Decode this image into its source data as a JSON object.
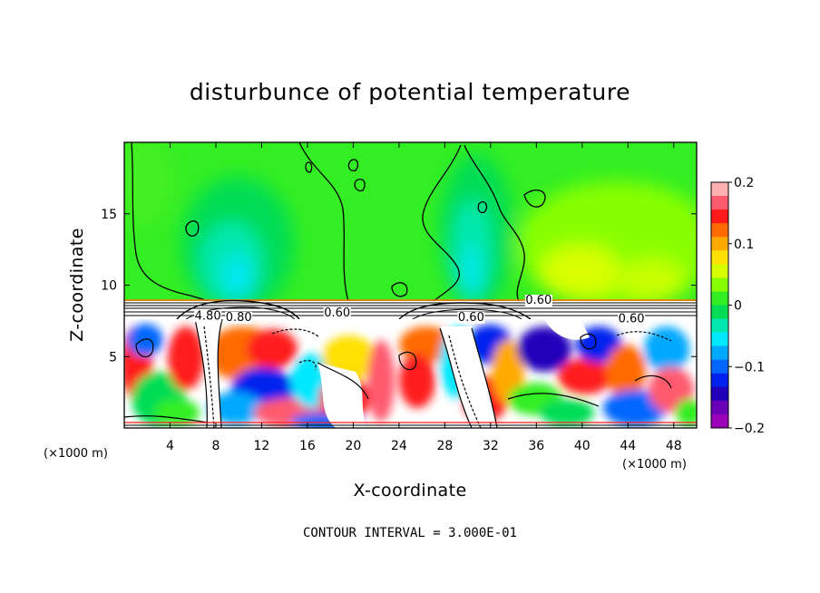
{
  "chart_data": {
    "type": "heatmap",
    "title": "disturbunce of potential temperature",
    "xlabel": "X-coordinate",
    "ylabel": "Z-coordinate",
    "x_unit": "(×1000 m)",
    "z_unit": "(×1000 m)",
    "xlim": [
      0,
      50
    ],
    "ylim": [
      0,
      20
    ],
    "x_ticks": [
      4,
      8,
      12,
      16,
      20,
      24,
      28,
      32,
      36,
      40,
      44,
      48
    ],
    "y_ticks": [
      5,
      10,
      15
    ],
    "colorbar": {
      "range": [
        -0.2,
        0.2
      ],
      "tick_labels": [
        "0.2",
        "0.1",
        "0",
        "-0.1",
        "-0.2"
      ],
      "tick_values": [
        0.2,
        0.1,
        0,
        -0.1,
        -0.2
      ],
      "colors": [
        "#ffb0b0",
        "#ff5a6e",
        "#ff1a1a",
        "#ff6a00",
        "#ffaa00",
        "#ffe000",
        "#d8ff00",
        "#88ff00",
        "#33ee22",
        "#00dd55",
        "#00e8b0",
        "#00e8ff",
        "#00a8ff",
        "#0066ff",
        "#0022ee",
        "#2200bb",
        "#6a00b8",
        "#9a00b8"
      ]
    },
    "contour_labels": [
      {
        "text": "0.60",
        "x": 36.2,
        "z": 8.7
      },
      {
        "text": "0.60",
        "x": 18.6,
        "z": 7.8
      },
      {
        "text": "0.60",
        "x": 30.3,
        "z": 7.5
      },
      {
        "text": "0.60",
        "x": 44.3,
        "z": 7.4
      },
      {
        "text": "4.80",
        "x": 7.3,
        "z": 7.6
      },
      {
        "text": "0.80",
        "x": 10.0,
        "z": 7.5
      }
    ],
    "contour_interval_text": "CONTOUR INTERVAL = 3.000E-01",
    "grid": false
  }
}
